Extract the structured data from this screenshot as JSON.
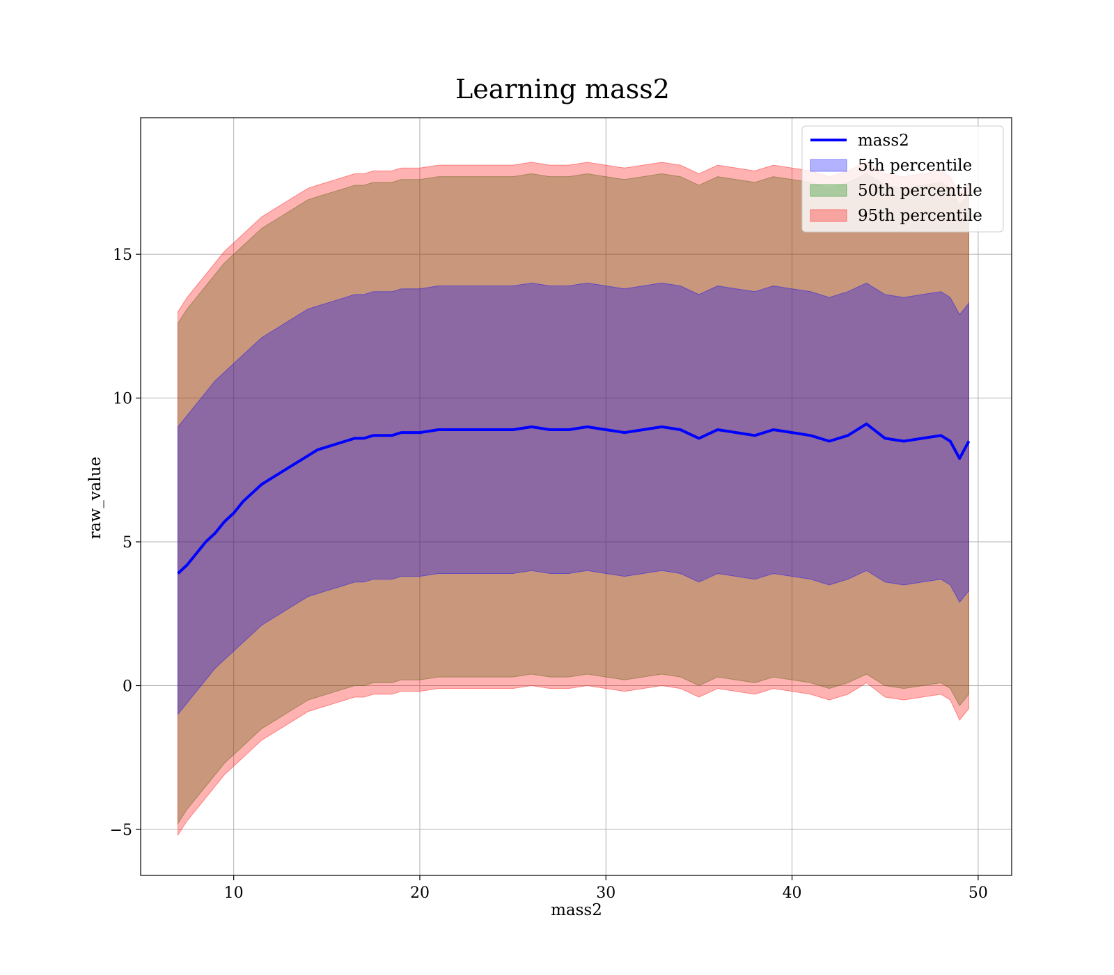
{
  "chart_data": {
    "type": "area",
    "title": "Learning mass2",
    "xlabel": "mass2",
    "ylabel": "raw_value",
    "xlim": [
      5,
      51.8
    ],
    "ylim": [
      -6.6,
      19.75
    ],
    "xticks": [
      10,
      20,
      30,
      40,
      50
    ],
    "yticks": [
      -5,
      0,
      5,
      10,
      15
    ],
    "grid": true,
    "legend_position": "upper right",
    "x": [
      7.0,
      7.5,
      8,
      8.5,
      9,
      9.5,
      10,
      10.5,
      11,
      11.5,
      12,
      12.5,
      13,
      13.5,
      14,
      14.5,
      15,
      15.5,
      16,
      16.5,
      17,
      17.5,
      18,
      18.5,
      19,
      19.5,
      20,
      21,
      22,
      23,
      24,
      25,
      26,
      27,
      28,
      29,
      30,
      31,
      32,
      33,
      34,
      35,
      36,
      37,
      38,
      39,
      40,
      41,
      42,
      43,
      44,
      45,
      46,
      47,
      48,
      48.5,
      49,
      49.5
    ],
    "series": [
      {
        "name": "mass2",
        "kind": "line",
        "color": "#0000ff",
        "values": [
          3.9,
          4.2,
          4.6,
          5.0,
          5.3,
          5.7,
          6.0,
          6.4,
          6.7,
          7.0,
          7.2,
          7.4,
          7.6,
          7.8,
          8.0,
          8.2,
          8.3,
          8.4,
          8.5,
          8.6,
          8.6,
          8.7,
          8.7,
          8.7,
          8.8,
          8.8,
          8.8,
          8.9,
          8.9,
          8.9,
          8.9,
          8.9,
          9.0,
          8.9,
          8.9,
          9.0,
          8.9,
          8.8,
          8.9,
          9.0,
          8.9,
          8.6,
          8.9,
          8.8,
          8.7,
          8.9,
          8.8,
          8.7,
          8.5,
          8.7,
          9.1,
          8.6,
          8.5,
          8.6,
          8.7,
          8.5,
          7.9,
          8.5
        ]
      },
      {
        "name": "5th percentile",
        "kind": "band",
        "color": "#0000ff",
        "lower": [
          -1.0,
          -0.6,
          -0.2,
          0.2,
          0.6,
          0.9,
          1.2,
          1.5,
          1.8,
          2.1,
          2.3,
          2.5,
          2.7,
          2.9,
          3.1,
          3.2,
          3.3,
          3.4,
          3.5,
          3.6,
          3.6,
          3.7,
          3.7,
          3.7,
          3.8,
          3.8,
          3.8,
          3.9,
          3.9,
          3.9,
          3.9,
          3.9,
          4.0,
          3.9,
          3.9,
          4.0,
          3.9,
          3.8,
          3.9,
          4.0,
          3.9,
          3.6,
          3.9,
          3.8,
          3.7,
          3.9,
          3.8,
          3.7,
          3.5,
          3.7,
          4.0,
          3.6,
          3.5,
          3.6,
          3.7,
          3.5,
          2.9,
          3.3
        ],
        "upper": [
          9.0,
          9.4,
          9.8,
          10.2,
          10.6,
          10.9,
          11.2,
          11.5,
          11.8,
          12.1,
          12.3,
          12.5,
          12.7,
          12.9,
          13.1,
          13.2,
          13.3,
          13.4,
          13.5,
          13.6,
          13.6,
          13.7,
          13.7,
          13.7,
          13.8,
          13.8,
          13.8,
          13.9,
          13.9,
          13.9,
          13.9,
          13.9,
          14.0,
          13.9,
          13.9,
          14.0,
          13.9,
          13.8,
          13.9,
          14.0,
          13.9,
          13.6,
          13.9,
          13.8,
          13.7,
          13.9,
          13.8,
          13.7,
          13.5,
          13.7,
          14.0,
          13.6,
          13.5,
          13.6,
          13.7,
          13.5,
          12.9,
          13.3
        ]
      },
      {
        "name": "50th percentile",
        "kind": "band",
        "color": "#008000",
        "lower": [
          -4.8,
          -4.3,
          -3.9,
          -3.5,
          -3.1,
          -2.7,
          -2.4,
          -2.1,
          -1.8,
          -1.5,
          -1.3,
          -1.1,
          -0.9,
          -0.7,
          -0.5,
          -0.4,
          -0.3,
          -0.2,
          -0.1,
          0.0,
          0.0,
          0.1,
          0.1,
          0.1,
          0.2,
          0.2,
          0.2,
          0.3,
          0.3,
          0.3,
          0.3,
          0.3,
          0.4,
          0.3,
          0.3,
          0.4,
          0.3,
          0.2,
          0.3,
          0.4,
          0.3,
          0.0,
          0.3,
          0.2,
          0.1,
          0.3,
          0.2,
          0.1,
          -0.1,
          0.1,
          0.4,
          0.0,
          -0.1,
          0.0,
          0.1,
          -0.1,
          -0.7,
          -0.3
        ],
        "upper": [
          12.6,
          13.1,
          13.5,
          13.9,
          14.3,
          14.7,
          15.0,
          15.3,
          15.6,
          15.9,
          16.1,
          16.3,
          16.5,
          16.7,
          16.9,
          17.0,
          17.1,
          17.2,
          17.3,
          17.4,
          17.4,
          17.5,
          17.5,
          17.5,
          17.6,
          17.6,
          17.6,
          17.7,
          17.7,
          17.7,
          17.7,
          17.7,
          17.8,
          17.7,
          17.7,
          17.8,
          17.7,
          17.6,
          17.7,
          17.8,
          17.7,
          17.4,
          17.7,
          17.6,
          17.5,
          17.7,
          17.6,
          17.5,
          17.3,
          17.5,
          17.8,
          17.4,
          17.3,
          17.4,
          17.5,
          17.3,
          16.7,
          17.1
        ]
      },
      {
        "name": "95th percentile",
        "kind": "band",
        "color": "#ff0000",
        "lower": [
          -5.2,
          -4.7,
          -4.3,
          -3.9,
          -3.5,
          -3.1,
          -2.8,
          -2.5,
          -2.2,
          -1.9,
          -1.7,
          -1.5,
          -1.3,
          -1.1,
          -0.9,
          -0.8,
          -0.7,
          -0.6,
          -0.5,
          -0.4,
          -0.4,
          -0.3,
          -0.3,
          -0.3,
          -0.2,
          -0.2,
          -0.2,
          -0.1,
          -0.1,
          -0.1,
          -0.1,
          -0.1,
          0.0,
          -0.1,
          -0.1,
          0.0,
          -0.1,
          -0.2,
          -0.1,
          0.0,
          -0.1,
          -0.4,
          -0.1,
          -0.2,
          -0.3,
          -0.1,
          -0.2,
          -0.3,
          -0.5,
          -0.3,
          0.1,
          -0.4,
          -0.5,
          -0.4,
          -0.3,
          -0.5,
          -1.2,
          -0.8
        ],
        "upper": [
          13.0,
          13.5,
          13.9,
          14.3,
          14.7,
          15.1,
          15.4,
          15.7,
          16.0,
          16.3,
          16.5,
          16.7,
          16.9,
          17.1,
          17.3,
          17.4,
          17.5,
          17.6,
          17.7,
          17.8,
          17.8,
          17.9,
          17.9,
          17.9,
          18.0,
          18.0,
          18.0,
          18.1,
          18.1,
          18.1,
          18.1,
          18.1,
          18.2,
          18.1,
          18.1,
          18.2,
          18.1,
          18.0,
          18.1,
          18.2,
          18.1,
          17.8,
          18.1,
          18.0,
          17.9,
          18.1,
          18.0,
          17.9,
          17.7,
          17.9,
          18.2,
          17.8,
          17.7,
          17.8,
          17.9,
          17.7,
          17.1,
          17.5
        ]
      }
    ]
  }
}
